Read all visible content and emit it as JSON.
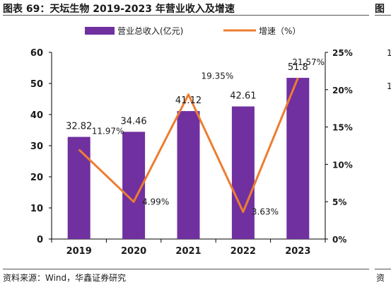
{
  "header": {
    "title": "图表 69：天坛生物 2019-2023 年营业收入及增速",
    "next_title_cut": "图"
  },
  "footer": {
    "source": "资料来源：Wind，华鑫证券研究",
    "next_source_cut": "资"
  },
  "right_panel_cut": {
    "tick_labels": [
      "1",
      "1"
    ]
  },
  "chart_data": {
    "type": "bar",
    "categories": [
      "2019",
      "2020",
      "2021",
      "2022",
      "2023"
    ],
    "series": [
      {
        "name": "营业总收入(亿元)",
        "type": "bar",
        "axis": "left",
        "color": "#7030a0",
        "values": [
          32.82,
          34.46,
          41.12,
          42.61,
          51.8
        ],
        "labels": [
          "32.82",
          "34.46",
          "41.12",
          "42.61",
          "51.8"
        ]
      },
      {
        "name": "增速（%）",
        "type": "line",
        "axis": "right",
        "color": "#ed7d31",
        "values": [
          11.97,
          4.99,
          19.35,
          3.63,
          21.57
        ],
        "labels": [
          "11.97%",
          "4.99%",
          "19.35%",
          "3.63%",
          "21.57%"
        ]
      }
    ],
    "y_left": {
      "ylim": [
        0,
        60
      ],
      "ticks": [
        0,
        10,
        20,
        30,
        40,
        50,
        60
      ],
      "tick_labels": [
        "0",
        "10",
        "20",
        "30",
        "40",
        "50",
        "60"
      ]
    },
    "y_right": {
      "ylim": [
        0,
        25
      ],
      "ticks": [
        0,
        5,
        10,
        15,
        20,
        25
      ],
      "tick_labels": [
        "0%",
        "5%",
        "10%",
        "15%",
        "20%",
        "25%"
      ]
    },
    "grid": false,
    "legend_position": "top"
  }
}
